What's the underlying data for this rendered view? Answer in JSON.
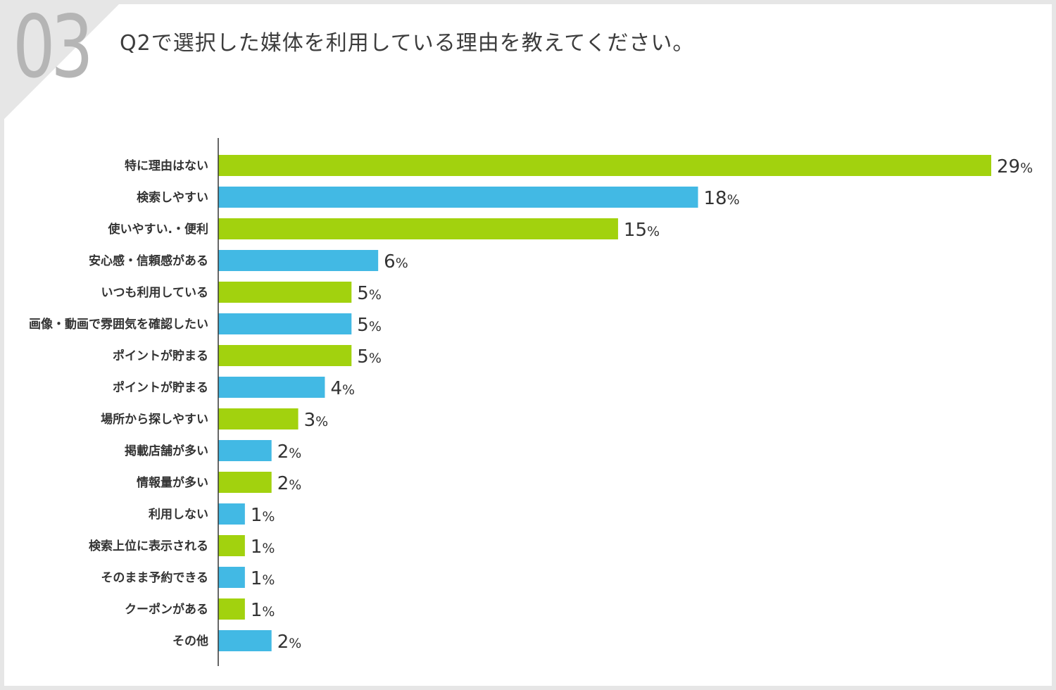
{
  "header": {
    "number": "03",
    "question": "Q2で選択した媒体を利用している理由を教えてください。"
  },
  "colors": {
    "green": "#a2d20e",
    "blue": "#42b9e4",
    "axis": "#333333"
  },
  "chart_data": {
    "type": "bar",
    "orientation": "horizontal",
    "value_suffix": "%",
    "categories": [
      "特に理由はない",
      "検索しやすい",
      "使いやすい.・便利",
      "安心感・信頼感がある",
      "いつも利用している",
      "画像・動画で雰囲気を確認したい",
      "ポイントが貯まる",
      "ポイントが貯まる",
      "場所から探しやすい",
      "掲載店舗が多い",
      "情報量が多い",
      "利用しない",
      "検索上位に表示される",
      "そのまま予約できる",
      "クーポンがある",
      "その他"
    ],
    "values": [
      29,
      18,
      15,
      6,
      5,
      5,
      5,
      4,
      3,
      2,
      2,
      1,
      1,
      1,
      1,
      2
    ],
    "bar_colors": [
      "green",
      "blue",
      "green",
      "blue",
      "green",
      "blue",
      "green",
      "blue",
      "green",
      "blue",
      "green",
      "blue",
      "green",
      "blue",
      "green",
      "blue"
    ],
    "grid": false,
    "legend": "none"
  }
}
